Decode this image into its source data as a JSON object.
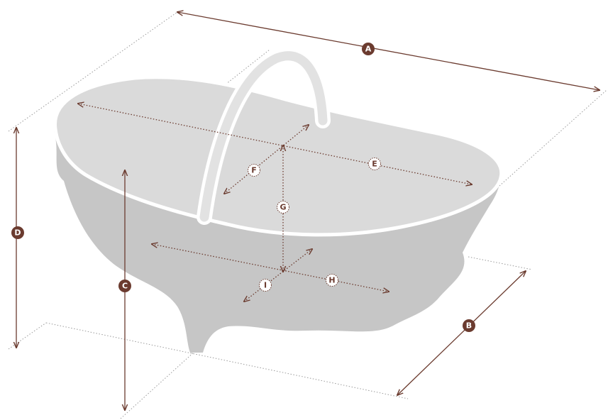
{
  "dimensions": [
    {
      "label": "A"
    },
    {
      "label": "B"
    },
    {
      "label": "C"
    },
    {
      "label": "D"
    },
    {
      "label": "E"
    },
    {
      "label": "F"
    },
    {
      "label": "G"
    },
    {
      "label": "H"
    },
    {
      "label": "I"
    }
  ]
}
